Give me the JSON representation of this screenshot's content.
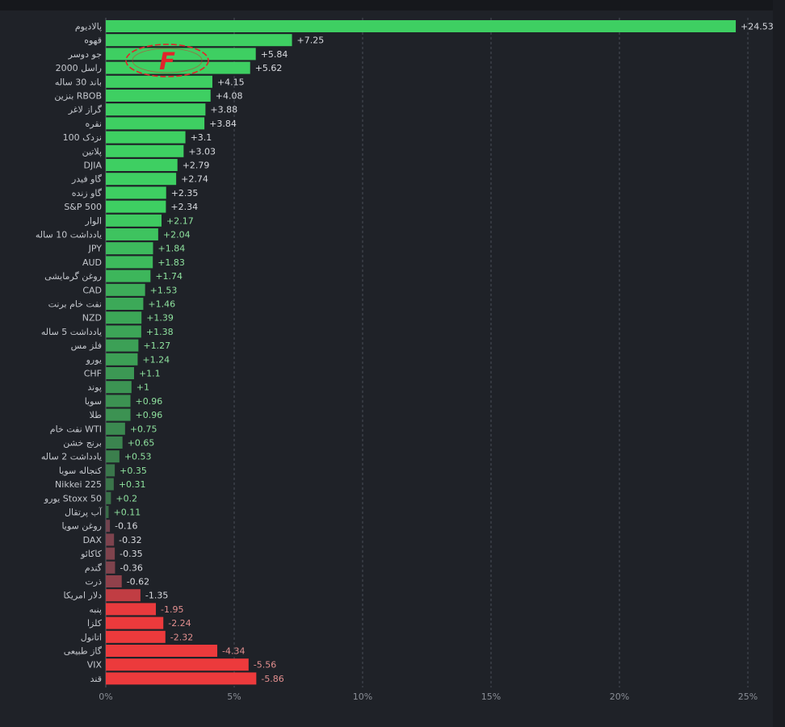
{
  "chart_data": {
    "type": "bar",
    "orientation": "horizontal",
    "categories": [
      "پالادیوم",
      "قهوه",
      "جو دوسر",
      "راسل 2000",
      "باند 30 ساله",
      "بنزین RBOB",
      "گراز لاغر",
      "نقره",
      "نزدک 100",
      "پلاتین",
      "DJIA",
      "گاو فیدر",
      "گاو زنده",
      "S&P 500",
      "الوار",
      "یادداشت 10 ساله",
      "JPY",
      "AUD",
      "روغن گرمایشی",
      "CAD",
      "نفت خام برنت",
      "NZD",
      "یادداشت 5 ساله",
      "فلز مس",
      "یورو",
      "CHF",
      "پوند",
      "سویا",
      "طلا",
      "نفت خام WTI",
      "برنج خشن",
      "یادداشت 2 ساله",
      "کنجاله سویا",
      "Nikkei 225",
      "یورو Stoxx 50",
      "آب پرتقال",
      "روغن سویا",
      "DAX",
      "کاکائو",
      "گندم",
      "ذرت",
      "دلار امریکا",
      "پنبه",
      "کلزا",
      "اتانول",
      "گاز طبیعی",
      "VIX",
      "قند"
    ],
    "values": [
      24.53,
      7.25,
      5.84,
      5.62,
      4.15,
      4.08,
      3.88,
      3.84,
      3.1,
      3.03,
      2.79,
      2.74,
      2.35,
      2.34,
      2.17,
      2.04,
      1.84,
      1.83,
      1.74,
      1.53,
      1.46,
      1.39,
      1.38,
      1.27,
      1.24,
      1.1,
      1,
      0.96,
      0.96,
      0.75,
      0.65,
      0.53,
      0.35,
      0.31,
      0.2,
      0.11,
      -0.16,
      -0.32,
      -0.35,
      -0.36,
      -0.62,
      -1.35,
      -1.95,
      -2.24,
      -2.32,
      -4.34,
      -5.56,
      -5.86
    ],
    "value_labels": [
      "+24.53",
      "+7.25",
      "+5.84",
      "+5.62",
      "+4.15",
      "+4.08",
      "+3.88",
      "+3.84",
      "+3.1",
      "+3.03",
      "+2.79",
      "+2.74",
      "+2.35",
      "+2.34",
      "+2.17",
      "+2.04",
      "+1.84",
      "+1.83",
      "+1.74",
      "+1.53",
      "+1.46",
      "+1.39",
      "+1.38",
      "+1.27",
      "+1.24",
      "+1.1",
      "+1",
      "+0.96",
      "+0.96",
      "+0.75",
      "+0.65",
      "+0.53",
      "+0.35",
      "+0.31",
      "+0.2",
      "+0.11",
      "-0.16",
      "-0.32",
      "-0.35",
      "-0.36",
      "-0.62",
      "-1.35",
      "-1.95",
      "-2.24",
      "-2.32",
      "-4.34",
      "-5.56",
      "-5.86"
    ],
    "xlim": [
      0,
      25
    ],
    "xticks": [
      0,
      5,
      10,
      15,
      20,
      25
    ],
    "xtick_labels": [
      "0%",
      "5%",
      "10%",
      "15%",
      "20%",
      "25%"
    ],
    "grid": "vertical dashed",
    "colors": {
      "background": "#1f2228",
      "strong_positive": "#3ecf62",
      "weak_positive": "#3a6b48",
      "weak_negative": "#6e4450",
      "strong_negative": "#ec3a3c",
      "label_text": "#c4c7cd",
      "positive_label_text": "#8fe39f",
      "negative_label_text": "#e38f8f",
      "grid": "#4a4e57",
      "logo_red": "#e1252b"
    }
  },
  "logo": {
    "letter": "F"
  }
}
